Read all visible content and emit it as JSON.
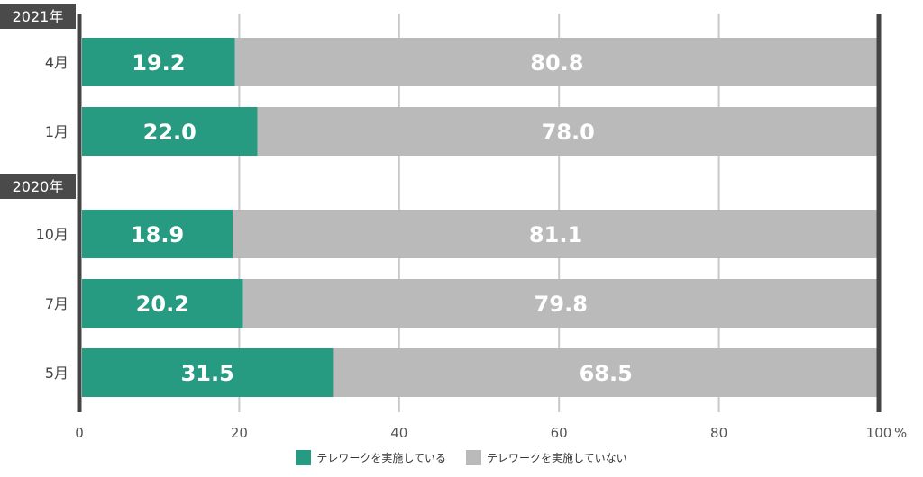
{
  "chart_data": {
    "type": "bar",
    "orientation": "horizontal",
    "stacked": true,
    "unit": "%",
    "xlim": [
      0,
      100
    ],
    "x_ticks": [
      0,
      20,
      40,
      60,
      80,
      100
    ],
    "x_tick_labels": [
      "0",
      "20",
      "40",
      "60",
      "80",
      "100"
    ],
    "grid": true,
    "legend_position": "bottom",
    "groups": [
      {
        "label": "2021年",
        "categories": [
          "4月",
          "1月"
        ]
      },
      {
        "label": "2020年",
        "categories": [
          "10月",
          "7月",
          "5月"
        ]
      }
    ],
    "categories": [
      "4月",
      "1月",
      "10月",
      "7月",
      "5月"
    ],
    "series": [
      {
        "name": "テレワークを実施している",
        "color": "#279a82",
        "values": [
          19.2,
          22.0,
          18.9,
          20.2,
          31.5
        ],
        "labels": [
          "19.2",
          "22.0",
          "18.9",
          "20.2",
          "31.5"
        ]
      },
      {
        "name": "テレワークを実施していない",
        "color": "#bababa",
        "values": [
          80.8,
          78.0,
          81.1,
          79.8,
          68.5
        ],
        "labels": [
          "80.8",
          "78.0",
          "81.1",
          "79.8",
          "68.5"
        ]
      }
    ]
  }
}
